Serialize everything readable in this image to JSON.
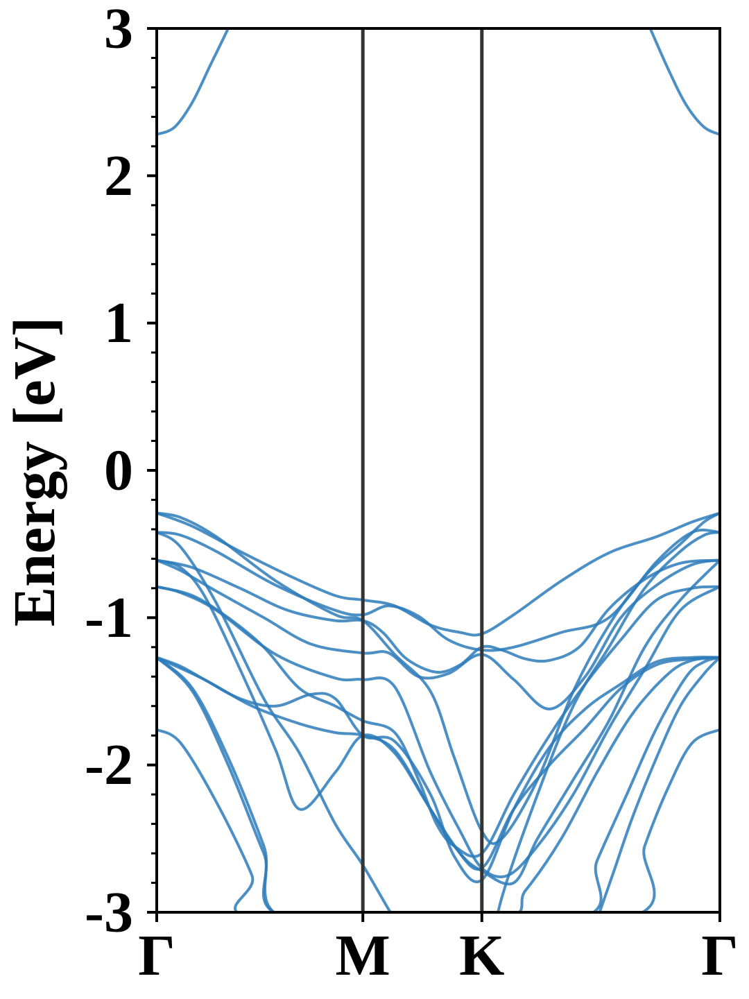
{
  "chart_data": {
    "type": "line",
    "title": "",
    "xlabel": "",
    "ylabel": "Energy [eV]",
    "ylim": [
      -3,
      3
    ],
    "yticks": [
      -3,
      -2,
      -1,
      0,
      1,
      2,
      3
    ],
    "yticks_labels": [
      "-3",
      "-2",
      "-1",
      "0",
      "1",
      "2",
      "3"
    ],
    "ytick_minor_step": 0.2,
    "grid": false,
    "legend": "none",
    "line_color": "#2b7bba",
    "divider_color": "#333333",
    "x_range": [
      0,
      4.732
    ],
    "high_symmetry_points": [
      {
        "label": "Γ",
        "x": 0
      },
      {
        "label": "M",
        "x": 1.732
      },
      {
        "label": "K",
        "x": 2.732
      },
      {
        "label": "Γ",
        "x": 4.732
      }
    ],
    "bands": [
      {
        "x": [
          0,
          0.15,
          0.3,
          0.45,
          0.6,
          0.62
        ],
        "y": [
          2.28,
          2.33,
          2.5,
          2.75,
          3.0,
          3.05
        ]
      },
      {
        "x": [
          4.12,
          4.3,
          4.45,
          4.6,
          4.732
        ],
        "y": [
          3.05,
          2.72,
          2.48,
          2.33,
          2.28
        ]
      },
      {
        "x": [
          0,
          0.3,
          0.7,
          1.1,
          1.5,
          1.732,
          2.0,
          2.3,
          2.55,
          2.732,
          3.0,
          3.4,
          3.8,
          4.2,
          4.5,
          4.732
        ],
        "y": [
          -0.29,
          -0.38,
          -0.55,
          -0.71,
          -0.85,
          -0.88,
          -0.92,
          -1.05,
          -1.1,
          -1.11,
          -0.98,
          -0.75,
          -0.56,
          -0.45,
          -0.35,
          -0.29
        ]
      },
      {
        "x": [
          0,
          0.2,
          0.5,
          1.0,
          1.5,
          1.732,
          1.95,
          2.2,
          2.45,
          2.732,
          3.0,
          3.4,
          3.8,
          4.2,
          4.5,
          4.732
        ],
        "y": [
          -0.42,
          -0.44,
          -0.55,
          -0.78,
          -0.95,
          -0.98,
          -0.92,
          -0.99,
          -1.15,
          -1.22,
          -1.2,
          -1.1,
          -1.0,
          -0.62,
          -0.42,
          -0.42
        ]
      },
      {
        "x": [
          0,
          0.3,
          0.7,
          1.1,
          1.5,
          1.732,
          1.9,
          2.1,
          2.35,
          2.55,
          2.732,
          2.9,
          3.1,
          3.3,
          3.55,
          3.8,
          4.1,
          4.4,
          4.732
        ],
        "y": [
          -0.61,
          -0.66,
          -0.8,
          -0.95,
          -1.02,
          -1.02,
          -1.1,
          -1.28,
          -1.37,
          -1.32,
          -1.2,
          -1.22,
          -1.28,
          -1.29,
          -1.2,
          -0.94,
          -0.74,
          -0.63,
          -0.61
        ]
      },
      {
        "x": [
          0,
          0.2,
          0.5,
          0.9,
          1.3,
          1.732,
          1.95,
          2.2,
          2.45,
          2.732,
          3.0,
          3.3,
          3.6,
          3.9,
          4.2,
          4.5,
          4.732
        ],
        "y": [
          -0.61,
          -0.68,
          -0.82,
          -1.0,
          -1.18,
          -1.24,
          -1.24,
          -1.4,
          -1.38,
          -1.25,
          -1.42,
          -1.62,
          -1.4,
          -1.0,
          -0.78,
          -0.64,
          -0.61
        ]
      },
      {
        "x": [
          0,
          0.3,
          0.6,
          0.9,
          1.2,
          1.5,
          1.732,
          2.0,
          2.2,
          2.35,
          2.5,
          2.732,
          3.0,
          3.3,
          3.6,
          3.9,
          4.2,
          4.5,
          4.732
        ],
        "y": [
          -0.79,
          -0.85,
          -1.0,
          -1.2,
          -1.48,
          -1.6,
          -1.7,
          -1.78,
          -2.1,
          -2.4,
          -2.55,
          -2.6,
          -2.2,
          -1.8,
          -1.45,
          -1.15,
          -0.88,
          -0.8,
          -0.79
        ]
      },
      {
        "x": [
          0,
          0.2,
          0.4,
          0.7,
          1.0,
          1.3,
          1.5,
          1.732,
          2.0,
          2.3,
          2.5,
          2.732,
          3.0,
          3.3,
          3.6,
          3.9,
          4.2,
          4.5,
          4.732
        ],
        "y": [
          -1.27,
          -1.33,
          -1.42,
          -1.55,
          -1.6,
          -1.52,
          -1.55,
          -1.8,
          -1.84,
          -2.2,
          -2.62,
          -2.78,
          -2.3,
          -1.88,
          -1.62,
          -1.45,
          -1.3,
          -1.27,
          -1.27
        ]
      },
      {
        "x": [
          0,
          0.4,
          0.8,
          1.2,
          1.5,
          1.732,
          2.0,
          2.3,
          2.5,
          2.732,
          3.0,
          3.3,
          3.6,
          3.9,
          4.2,
          4.5,
          4.732
        ],
        "y": [
          -1.27,
          -1.42,
          -1.6,
          -1.72,
          -1.78,
          -1.8,
          -1.9,
          -2.3,
          -2.55,
          -2.7,
          -2.3,
          -2.0,
          -1.75,
          -1.48,
          -1.32,
          -1.28,
          -1.27
        ]
      },
      {
        "x": [
          0,
          0.2,
          0.4,
          0.7,
          1.0,
          1.2,
          1.5,
          1.732,
          2.0,
          2.3,
          2.55,
          2.732,
          3.0,
          3.2,
          3.5,
          3.8,
          4.1,
          4.4,
          4.732
        ],
        "y": [
          -0.61,
          -0.66,
          -0.85,
          -1.35,
          -1.9,
          -2.3,
          -2.05,
          -1.8,
          -1.92,
          -2.3,
          -2.6,
          -2.72,
          -2.8,
          -2.5,
          -2.1,
          -1.7,
          -1.2,
          -0.88,
          -0.61
        ]
      },
      {
        "x": [
          0,
          0.2,
          0.5,
          1.0,
          1.5,
          1.732,
          2.0,
          2.3,
          2.55,
          2.732,
          2.95,
          3.2,
          3.5,
          3.8,
          4.1,
          4.4,
          4.732
        ],
        "y": [
          -0.79,
          -0.83,
          -0.95,
          -1.25,
          -1.41,
          -1.42,
          -1.47,
          -2.05,
          -2.45,
          -2.7,
          -2.75,
          -2.55,
          -2.2,
          -1.75,
          -1.35,
          -0.95,
          -0.79
        ]
      },
      {
        "x": [
          0,
          0.2,
          0.5,
          1.0,
          1.5,
          1.732,
          2.0,
          2.3,
          2.5,
          2.732,
          2.9,
          3.2,
          3.5,
          3.8,
          4.1,
          4.4,
          4.6,
          4.732
        ],
        "y": [
          -0.29,
          -0.32,
          -0.45,
          -0.75,
          -0.98,
          -1.02,
          -1.25,
          -1.5,
          -1.95,
          -2.45,
          -2.5,
          -2.1,
          -1.5,
          -1.05,
          -0.72,
          -0.5,
          -0.35,
          -0.29
        ]
      },
      {
        "x": [
          0,
          0.2,
          0.5,
          0.9,
          1.2,
          1.5,
          1.732,
          2.0,
          2.35,
          2.55,
          2.732,
          2.9,
          3.2,
          3.5,
          3.8,
          4.1,
          4.4,
          4.6,
          4.732
        ],
        "y": [
          -0.42,
          -0.52,
          -0.9,
          -1.55,
          -1.92,
          -2.4,
          -2.68,
          -3.05,
          -3.5,
          -3.6,
          -3.5,
          -2.9,
          -2.2,
          -1.6,
          -1.2,
          -0.8,
          -0.55,
          -0.44,
          -0.42
        ]
      },
      {
        "x": [
          0,
          0.3,
          0.6,
          0.9,
          1.1,
          2.85,
          3.1,
          3.4,
          3.7,
          4.0,
          4.3,
          4.5,
          4.732
        ],
        "y": [
          -1.27,
          -1.48,
          -1.95,
          -2.55,
          -3.05,
          -3.05,
          -2.85,
          -2.5,
          -2.05,
          -1.65,
          -1.38,
          -1.29,
          -1.27
        ]
      },
      {
        "x": [
          0,
          0.3,
          0.6,
          0.9,
          1.15,
          3.5,
          3.7,
          3.95,
          4.2,
          4.45,
          4.6,
          4.732
        ],
        "y": [
          -1.27,
          -1.5,
          -2.0,
          -2.6,
          -3.05,
          -3.05,
          -2.65,
          -2.2,
          -1.75,
          -1.4,
          -1.3,
          -1.27
        ]
      },
      {
        "x": [
          0,
          0.2,
          0.5,
          0.8,
          0.9,
          3.9,
          4.1,
          4.3,
          4.5,
          4.732
        ],
        "y": [
          -1.76,
          -1.85,
          -2.25,
          -2.75,
          -3.05,
          -3.05,
          -2.55,
          -2.15,
          -1.85,
          -1.76
        ]
      },
      {
        "x": [
          3.7,
          3.85,
          4.0,
          4.2,
          4.4,
          4.6,
          4.732
        ],
        "y": [
          -3.05,
          -2.7,
          -2.35,
          -1.95,
          -1.6,
          -1.38,
          -1.27
        ]
      }
    ]
  }
}
